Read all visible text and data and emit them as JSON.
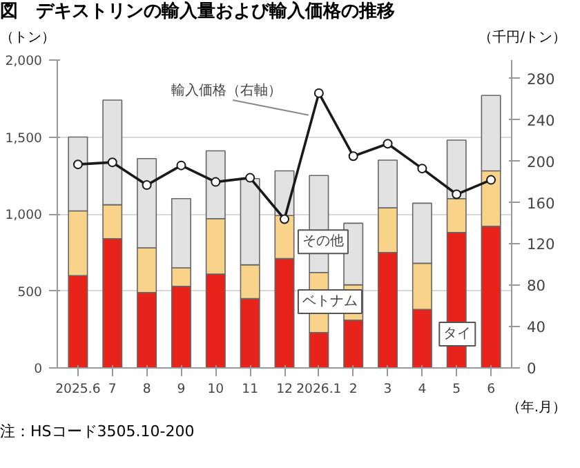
{
  "chart_data": {
    "type": "bar",
    "title": "図　デキストリンの輸入量および輸入価格の推移",
    "ylabel": "（トン）",
    "y2label": "（千円/トン）",
    "xlabel": "（年.月）",
    "annotations": [
      "注：HSコード3505.10-200"
    ],
    "categories": [
      "2025.6",
      "7",
      "8",
      "9",
      "10",
      "11",
      "12",
      "2026.1",
      "2",
      "3",
      "4",
      "5",
      "6"
    ],
    "stacked": true,
    "grid": "y",
    "ylim": [
      0,
      2000
    ],
    "yticks": [
      0,
      500,
      {
        "value": 1000,
        "label": "1,000"
      },
      {
        "value": 1500,
        "label": "1,500"
      },
      {
        "value": 2000,
        "label": "2,000"
      }
    ],
    "y2lim": [
      0,
      298
    ],
    "y2ticks": [
      0,
      40,
      80,
      120,
      160,
      200,
      240,
      280
    ],
    "series": [
      {
        "name": "タイ",
        "color": "#e8231c",
        "values": [
          600,
          840,
          490,
          530,
          610,
          450,
          710,
          230,
          310,
          750,
          380,
          880,
          920
        ]
      },
      {
        "name": "ベトナム",
        "color": "#f9d38a",
        "values": [
          420,
          220,
          290,
          120,
          360,
          220,
          280,
          390,
          230,
          290,
          300,
          220,
          360
        ]
      },
      {
        "name": "その他",
        "color": "#e2e2e2",
        "values": [
          480,
          680,
          580,
          450,
          440,
          560,
          290,
          630,
          400,
          310,
          390,
          380,
          490
        ]
      },
      {
        "name": "輸入価格（右軸）",
        "type": "line",
        "axis": "y2",
        "color": "#1a1a1a",
        "marker": "circle",
        "line_style": "solid",
        "values": [
          197,
          199,
          177,
          196,
          180,
          184,
          144,
          266,
          205,
          217,
          193,
          168,
          182
        ]
      }
    ]
  }
}
